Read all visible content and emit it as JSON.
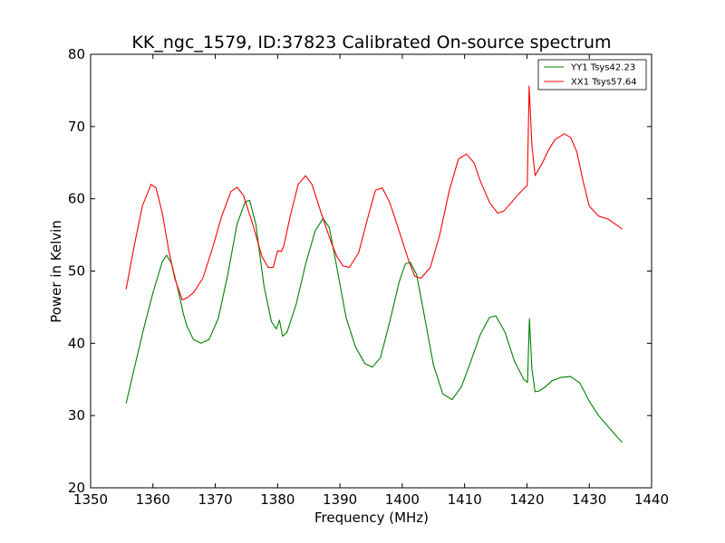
{
  "chart_data": {
    "type": "line",
    "title": "KK_ngc_1579, ID:37823 Calibrated On-source spectrum",
    "xlabel": "Frequency (MHz)",
    "ylabel": "Power in Kelvin",
    "xlim": [
      1350,
      1440
    ],
    "ylim": [
      20,
      80
    ],
    "xticks": [
      1350,
      1360,
      1370,
      1380,
      1390,
      1400,
      1410,
      1420,
      1430,
      1440
    ],
    "yticks": [
      20,
      30,
      40,
      50,
      60,
      70,
      80
    ],
    "grid": false,
    "legend_position": "top-right",
    "series": [
      {
        "name": "YY1 Tsys42.23",
        "color": "#008000",
        "x": [
          1355.7,
          1357,
          1358.5,
          1360,
          1361.5,
          1362.2,
          1363,
          1364,
          1364.9,
          1365.4,
          1366.5,
          1367.7,
          1369,
          1370.5,
          1372,
          1373.5,
          1374.8,
          1375.5,
          1376.5,
          1377.8,
          1379,
          1379.8,
          1380.3,
          1380.8,
          1381.5,
          1383,
          1384.5,
          1386,
          1387.3,
          1388.3,
          1389.5,
          1391,
          1392.5,
          1394,
          1395.2,
          1396.5,
          1398,
          1399.5,
          1400.5,
          1401.3,
          1402.3,
          1403.5,
          1405,
          1406.5,
          1408,
          1409.5,
          1411,
          1412.5,
          1414,
          1415,
          1416.5,
          1418,
          1419.5,
          1420.1,
          1420.4,
          1420.8,
          1421.3,
          1422,
          1423,
          1424,
          1425.5,
          1427,
          1428.5,
          1430,
          1431.5,
          1433,
          1434.5,
          1435.3
        ],
        "values": [
          31.7,
          36.5,
          42,
          47,
          51.3,
          52.2,
          51,
          47.5,
          44,
          42.5,
          40.5,
          40,
          40.5,
          43.5,
          49.5,
          56.5,
          59.6,
          59.8,
          56.5,
          48,
          43,
          42,
          43.2,
          41,
          41.5,
          45.5,
          51,
          55.5,
          57.3,
          56,
          50.5,
          43.5,
          39.5,
          37.2,
          36.7,
          38,
          43,
          48.5,
          51,
          51.2,
          49.5,
          44,
          37,
          33,
          32.2,
          34,
          37.5,
          41.2,
          43.6,
          43.8,
          41.5,
          37.5,
          35,
          34.6,
          43.4,
          36.5,
          33.3,
          33.4,
          34,
          34.8,
          35.3,
          35.4,
          34.5,
          32,
          30,
          28.5,
          27,
          26.3
        ]
      },
      {
        "name": "XX1 Tsys57.64",
        "color": "#ff0000",
        "x": [
          1355.7,
          1357,
          1358.3,
          1359.7,
          1360.5,
          1361.5,
          1362.5,
          1363.5,
          1364.7,
          1365.5,
          1366.5,
          1368,
          1369.5,
          1371,
          1372.5,
          1373.5,
          1374.5,
          1376,
          1377.5,
          1378.5,
          1379.3,
          1380,
          1380.6,
          1381,
          1382,
          1383.3,
          1384.5,
          1385.5,
          1387,
          1388.5,
          1389.5,
          1390.5,
          1391.5,
          1393,
          1394.5,
          1395.7,
          1396.8,
          1398,
          1399.5,
          1401,
          1402,
          1403,
          1404.5,
          1406,
          1407.5,
          1409,
          1410.3,
          1411.5,
          1412.5,
          1414,
          1415.3,
          1416.3,
          1417.5,
          1418.5,
          1419.6,
          1420.05,
          1420.35,
          1420.8,
          1421.3,
          1422.5,
          1423.5,
          1424.5,
          1426,
          1427,
          1428,
          1429,
          1430,
          1431.5,
          1433,
          1434.5,
          1435.3
        ],
        "values": [
          47.5,
          53.5,
          59,
          62,
          61.5,
          58,
          53,
          49,
          46,
          46.3,
          47,
          49,
          53,
          57.5,
          61,
          61.6,
          60.5,
          56.5,
          52,
          50.5,
          50.5,
          52.8,
          52.7,
          53.5,
          57.5,
          62,
          63.2,
          62,
          58,
          54.2,
          52,
          50.7,
          50.5,
          52.5,
          57.5,
          61.2,
          61.5,
          59.5,
          55.5,
          51.5,
          49.3,
          49,
          50.5,
          55,
          61,
          65.5,
          66.2,
          65,
          62.5,
          59.5,
          58,
          58.3,
          59.5,
          60.5,
          61.5,
          61.8,
          75.6,
          67.5,
          63.2,
          65,
          66.8,
          68.2,
          69,
          68.5,
          66.5,
          62.5,
          59,
          57.6,
          57.2,
          56.3,
          55.8
        ]
      }
    ]
  }
}
